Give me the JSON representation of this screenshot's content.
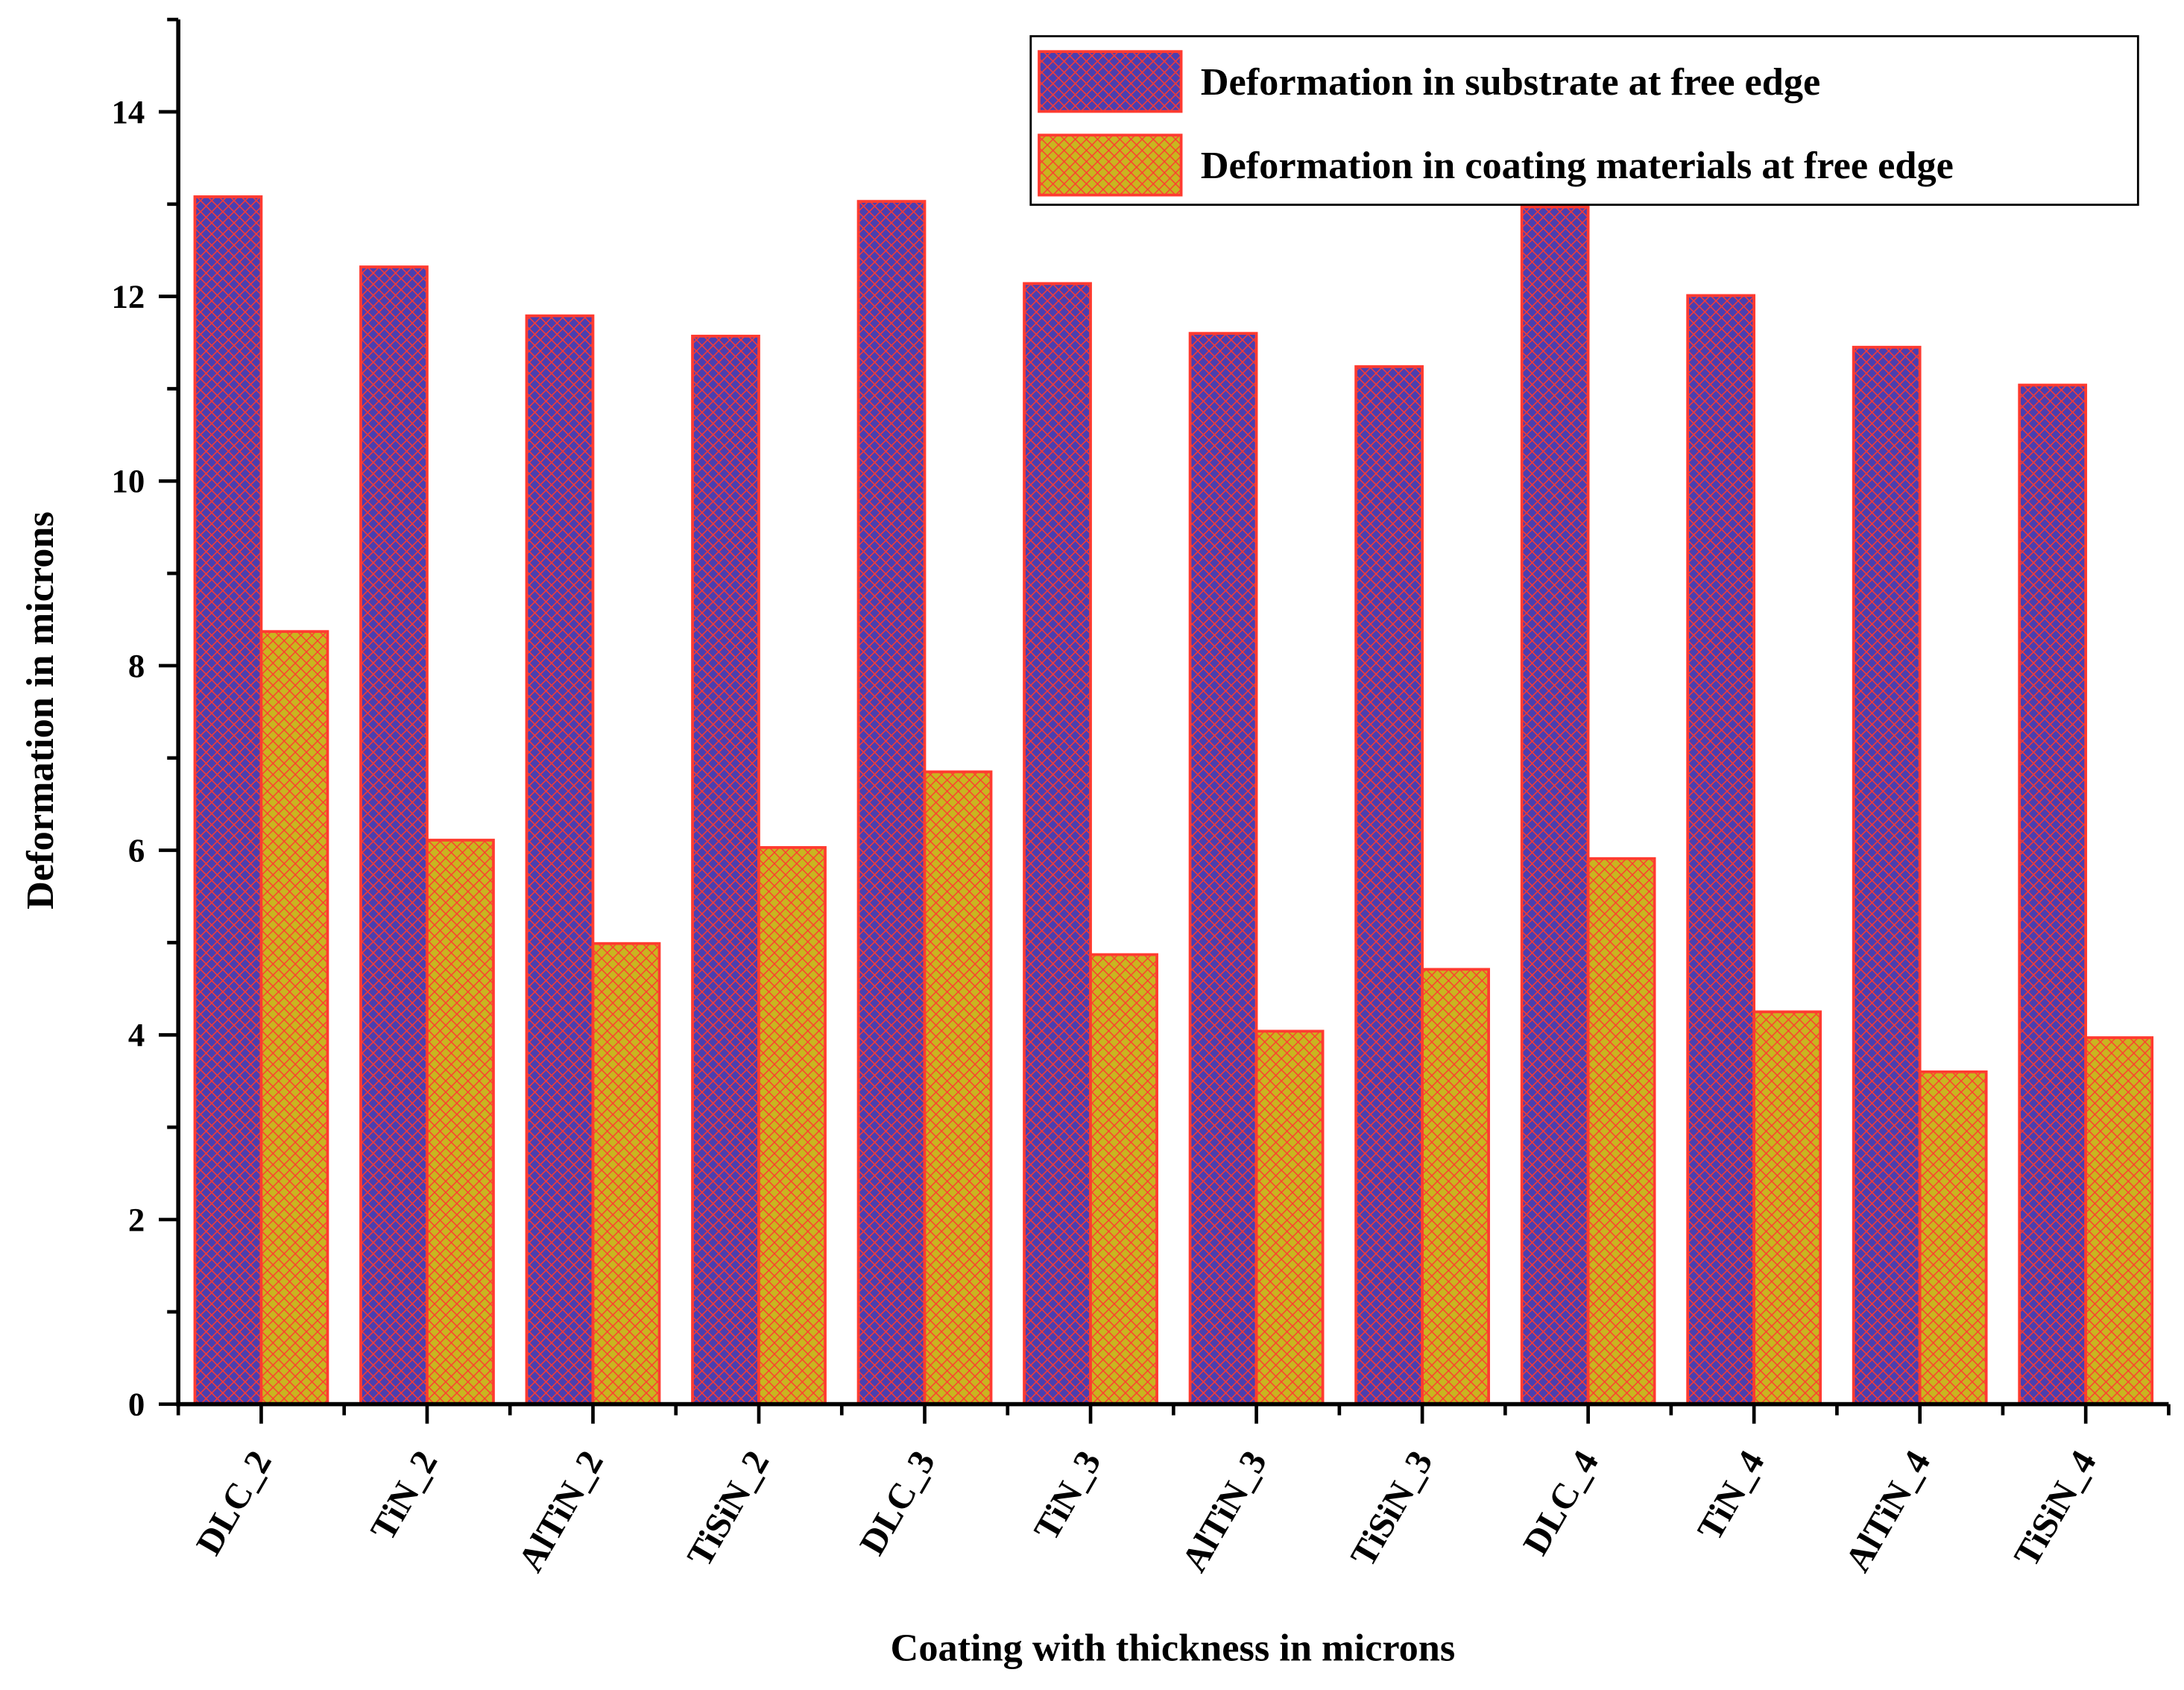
{
  "chart_data": {
    "type": "bar",
    "xlabel": "Coating with thickness in microns",
    "ylabel": "Deformation in microns",
    "categories": [
      "DLC_2",
      "TiN_2",
      "AlTiN_2",
      "TiSiN_2",
      "DLC_3",
      "TiN_3",
      "AlTiN_3",
      "TiSiN_3",
      "DLC_4",
      "TiN_4",
      "AlTiN_4",
      "TiSiN_4"
    ],
    "series": [
      {
        "name": "Deformation in substrate at free edge",
        "color": "#4a3fb0",
        "edgecolor": "#ff3b30",
        "values": [
          13.08,
          12.32,
          11.79,
          11.57,
          13.03,
          12.14,
          11.6,
          11.24,
          12.97,
          12.01,
          11.45,
          11.04
        ]
      },
      {
        "name": "Deformation in coating materials at free edge",
        "color": "#c9b520",
        "edgecolor": "#ff3b30",
        "values": [
          8.37,
          6.11,
          4.99,
          6.03,
          6.85,
          4.87,
          4.04,
          4.71,
          5.91,
          4.25,
          3.6,
          3.97
        ]
      }
    ],
    "ylim": [
      0,
      15
    ],
    "yticks": [
      0,
      2,
      4,
      6,
      8,
      10,
      12,
      14
    ],
    "minor_yticks": [
      1,
      3,
      5,
      7,
      9,
      11,
      13,
      15
    ],
    "hatch": "cross",
    "legend": "upper right"
  }
}
